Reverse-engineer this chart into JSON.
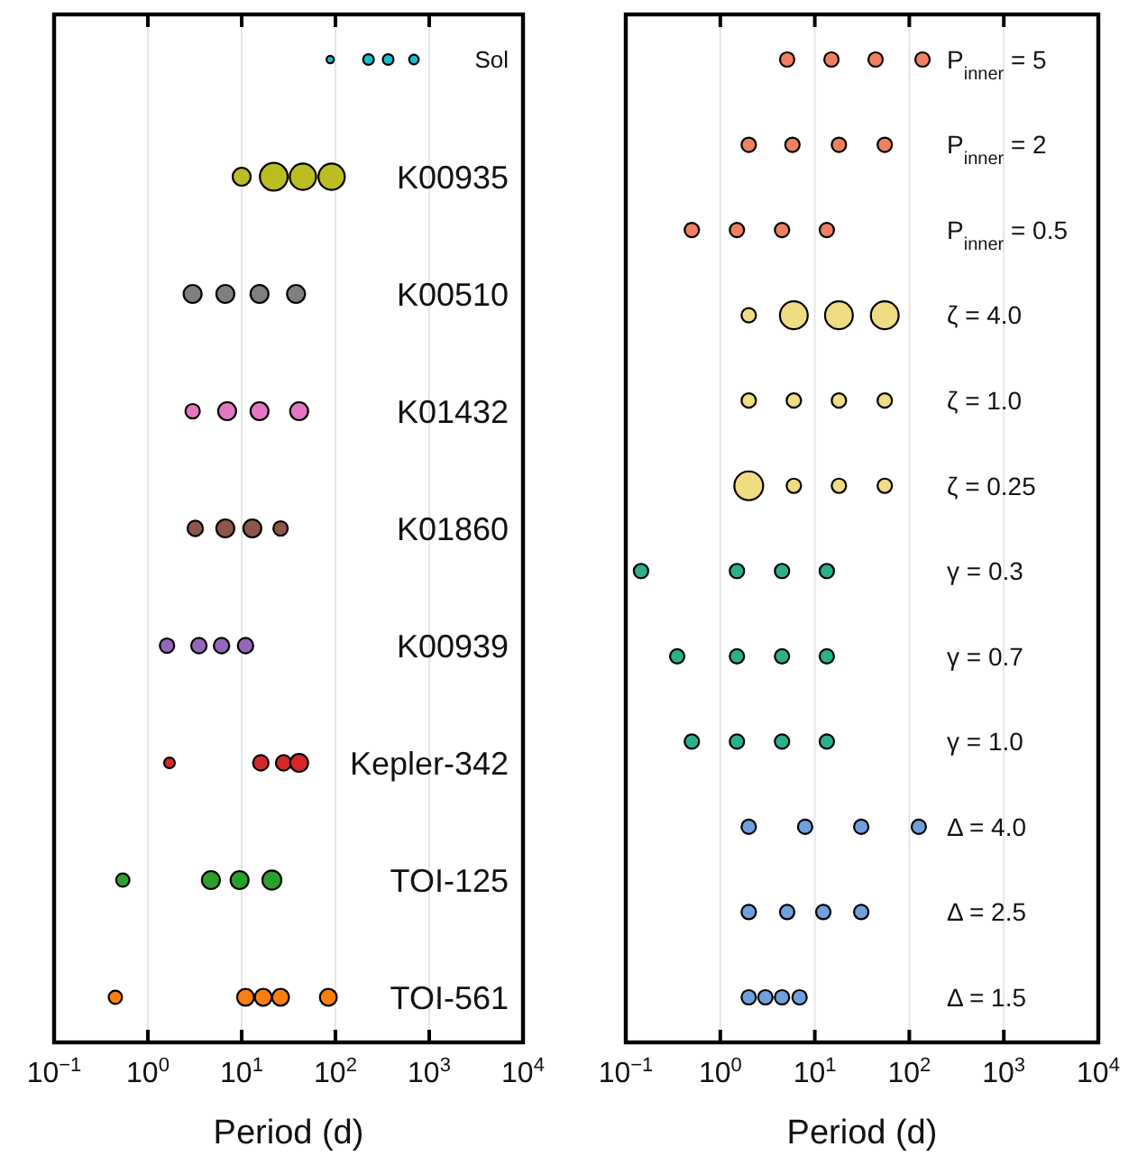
{
  "chart_data": [
    {
      "type": "bubble",
      "orientation": "horizontal",
      "xlabel": "Period (d)",
      "log": "x",
      "grid": "x",
      "marker": "circle",
      "xlim": [
        0.1,
        10000
      ],
      "xticks": [
        {
          "value": 0.1,
          "label": "10$^{−1}$"
        },
        {
          "value": 1,
          "label": "10$^{0}$"
        },
        {
          "value": 10,
          "label": "10$^{1}$"
        },
        {
          "value": 100,
          "label": "10$^{2}$"
        },
        {
          "value": 1000,
          "label": "10$^{3}$"
        },
        {
          "value": 10000,
          "label": "10$^{4}$"
        }
      ],
      "categories": [
        "Sol",
        "K00935",
        "K00510",
        "K01432",
        "K01860",
        "K00939",
        "Kepler-342",
        "TOI-125",
        "TOI-561"
      ],
      "series": [
        {
          "colors": [
            "#17becf",
            "#bcbd22",
            "#7f7f7f",
            "#e377c2",
            "#8c564b",
            "#9467bd",
            "#d62728",
            "#2ca02c",
            "#ff7f0e"
          ],
          "values": [
            88,
            10,
            3.0,
            3.0,
            3.2,
            1.6,
            1.7,
            0.54,
            0.45
          ],
          "sizes": [
            0.07,
            0.42,
            0.42,
            0.27,
            0.31,
            0.27,
            0.15,
            0.23,
            0.23
          ]
        },
        {
          "colors": [
            "#17becf",
            "#bcbd22",
            "#7f7f7f",
            "#e377c2",
            "#8c564b",
            "#9467bd",
            "#d62728",
            "#2ca02c",
            "#ff7f0e"
          ],
          "values": [
            225,
            22,
            6.7,
            7.0,
            6.7,
            3.5,
            16,
            4.7,
            11
          ],
          "sizes": [
            0.15,
            1,
            0.42,
            0.42,
            0.42,
            0.31,
            0.31,
            0.42,
            0.37
          ]
        },
        {
          "colors": [
            "#17becf",
            "#bcbd22",
            "#7f7f7f",
            "#e377c2",
            "#8c564b",
            "#9467bd",
            "#d62728",
            "#2ca02c",
            "#ff7f0e"
          ],
          "values": [
            365,
            45,
            15.5,
            15.5,
            13,
            6.1,
            28,
            9.5,
            17
          ],
          "sizes": [
            0.15,
            0.9,
            0.42,
            0.42,
            0.42,
            0.31,
            0.31,
            0.42,
            0.37
          ]
        },
        {
          "colors": [
            "#17becf",
            "#bcbd22",
            "#7f7f7f",
            "#e377c2",
            "#8c564b",
            "#9467bd",
            "#d62728",
            "#2ca02c",
            "#ff7f0e"
          ],
          "values": [
            687,
            91,
            38,
            41,
            26,
            11,
            41,
            21,
            26
          ],
          "sizes": [
            0.12,
            0.9,
            0.42,
            0.42,
            0.27,
            0.31,
            0.42,
            0.47,
            0.37
          ]
        },
        {
          "colors": [
            null,
            null,
            null,
            null,
            null,
            null,
            null,
            null,
            "#ff7f0e"
          ],
          "values": [
            null,
            null,
            null,
            null,
            null,
            null,
            null,
            null,
            84
          ],
          "sizes": [
            null,
            null,
            null,
            null,
            null,
            null,
            null,
            null,
            0.37
          ]
        }
      ]
    },
    {
      "type": "bubble",
      "orientation": "horizontal",
      "xlabel": "Period (d)",
      "log": "x",
      "grid": "x",
      "marker": "circle",
      "xlim": [
        0.1,
        10000
      ],
      "xticks": [
        {
          "value": 0.1,
          "label": "10$^{−1}$"
        },
        {
          "value": 1,
          "label": "10$^{0}$"
        },
        {
          "value": 10,
          "label": "10$^{1}$"
        },
        {
          "value": 100,
          "label": "10$^{2}$"
        },
        {
          "value": 1000,
          "label": "10$^{3}$"
        },
        {
          "value": 10000,
          "label": "10$^{4}$"
        }
      ],
      "categories": [
        "P$_{inner}$ = 5",
        "P$_{inner}$ = 2",
        "P$_{inner}$ = 0.5",
        "ζ = 4.0",
        "ζ = 1.0",
        "ζ = 0.25",
        "γ = 0.3",
        "γ = 0.7",
        "γ = 1.0",
        "Δ = 4.0",
        "Δ = 2.5",
        "Δ = 1.5"
      ],
      "series": [
        {
          "colors": [
            "#f08060",
            "#f08060",
            "#f08060",
            "#f0dc82",
            "#f0dc82",
            "#f0dc82",
            "#2ab08a",
            "#2ab08a",
            "#2ab08a",
            "#6fa0dc",
            "#6fa0dc",
            "#6fa0dc"
          ],
          "values": [
            5.1,
            2.0,
            0.5,
            2.0,
            2.0,
            2.0,
            0.145,
            0.35,
            0.5,
            2.0,
            2.0,
            2.0
          ],
          "sizes": [
            0.25,
            0.25,
            0.25,
            0.25,
            0.25,
            1,
            0.25,
            0.25,
            0.25,
            0.25,
            0.25,
            0.25
          ]
        },
        {
          "colors": [
            "#f08060",
            "#f08060",
            "#f08060",
            "#f0dc82",
            "#f0dc82",
            "#f0dc82",
            "#2ab08a",
            "#2ab08a",
            "#2ab08a",
            "#6fa0dc",
            "#6fa0dc",
            "#6fa0dc"
          ],
          "values": [
            15,
            5.8,
            1.5,
            6.0,
            6.0,
            6.0,
            1.5,
            1.5,
            1.5,
            7.9,
            5.1,
            3.0
          ],
          "sizes": [
            0.25,
            0.25,
            0.25,
            0.93,
            0.25,
            0.25,
            0.25,
            0.25,
            0.25,
            0.25,
            0.25,
            0.25
          ]
        },
        {
          "colors": [
            "#f08060",
            "#f08060",
            "#f08060",
            "#f0dc82",
            "#f0dc82",
            "#f0dc82",
            "#2ab08a",
            "#2ab08a",
            "#2ab08a",
            "#6fa0dc",
            "#6fa0dc",
            "#6fa0dc"
          ],
          "values": [
            44,
            18,
            4.5,
            18,
            18,
            18,
            4.5,
            4.5,
            4.5,
            31,
            12.3,
            4.5
          ],
          "sizes": [
            0.25,
            0.25,
            0.25,
            0.93,
            0.25,
            0.25,
            0.25,
            0.25,
            0.25,
            0.25,
            0.25,
            0.25
          ]
        },
        {
          "colors": [
            "#f08060",
            "#f08060",
            "#f08060",
            "#f0dc82",
            "#f0dc82",
            "#f0dc82",
            "#2ab08a",
            "#2ab08a",
            "#2ab08a",
            "#6fa0dc",
            "#6fa0dc",
            "#6fa0dc"
          ],
          "values": [
            138,
            55,
            13.4,
            55,
            55,
            55,
            13.4,
            13.4,
            13.4,
            126,
            31,
            6.9
          ],
          "sizes": [
            0.25,
            0.25,
            0.25,
            0.93,
            0.25,
            0.25,
            0.25,
            0.25,
            0.25,
            0.25,
            0.25,
            0.25
          ]
        }
      ]
    }
  ]
}
